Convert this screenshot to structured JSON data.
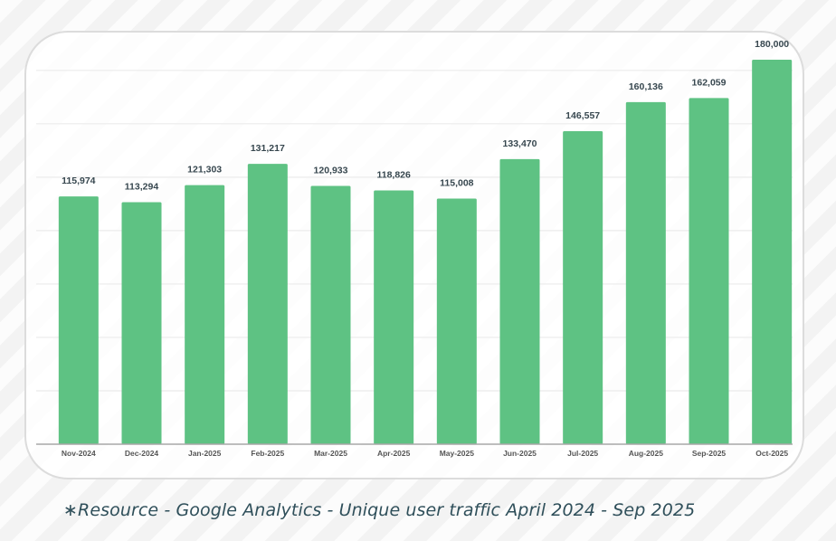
{
  "chart_data": {
    "type": "bar",
    "title": "",
    "xlabel": "",
    "ylabel": "",
    "categories": [
      "Nov-2024",
      "Dec-2024",
      "Jan-2025",
      "Feb-2025",
      "Mar-2025",
      "Apr-2025",
      "May-2025",
      "Jun-2025",
      "Jul-2025",
      "Aug-2025",
      "Sep-2025",
      "Oct-2025"
    ],
    "values": [
      115974,
      113294,
      121303,
      131217,
      120933,
      118826,
      115008,
      133470,
      146557,
      160136,
      162059,
      180000
    ],
    "data_labels": [
      "115,974",
      "113,294",
      "121,303",
      "131,217",
      "120,933",
      "118,826",
      "115,008",
      "133,470",
      "146,557",
      "160,136",
      "162,059",
      "180,000"
    ],
    "ylim": [
      0,
      180000
    ],
    "gridlines": [
      25000,
      50000,
      75000,
      100000,
      125000,
      150000,
      175000
    ],
    "grid": true,
    "y_tick_labels_visible": false,
    "legend": "none",
    "bar_color": "#5ec283",
    "label_color": "#37474f",
    "tick_label_color": "#555555"
  },
  "footnote": "∗Resource - Google Analytics - Unique user traffic April 2024 - Sep 2025"
}
